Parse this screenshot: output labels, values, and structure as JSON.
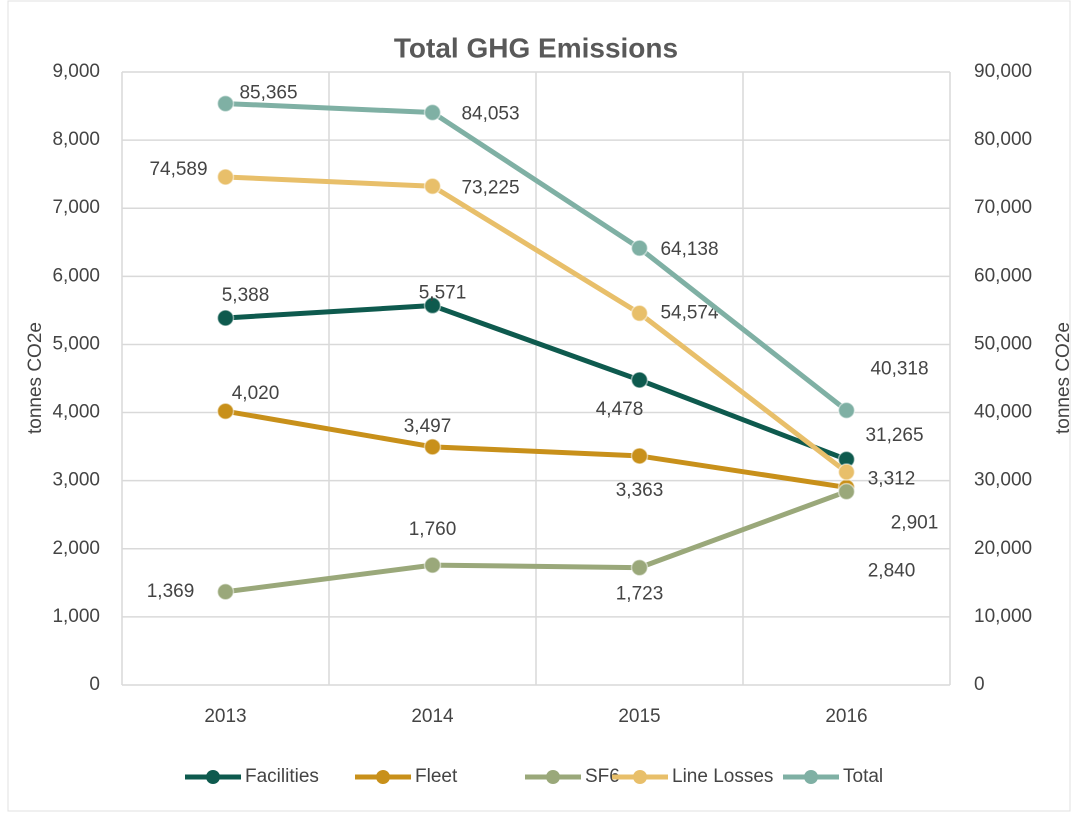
{
  "chart_data": {
    "type": "line",
    "title": "Total GHG Emissions",
    "categories": [
      "2013",
      "2014",
      "2015",
      "2016"
    ],
    "series": [
      {
        "name": "Facilities",
        "color": "#0e5a4e",
        "values": [
          5388,
          5571,
          4478,
          3312
        ],
        "value_labels": [
          "5,388",
          "5,571",
          "4,478",
          "3,312"
        ]
      },
      {
        "name": "Fleet",
        "color": "#c8901a",
        "values": [
          4020,
          3497,
          3363,
          2901
        ],
        "value_labels": [
          "4,020",
          "3,497",
          "3,363",
          "2,901"
        ]
      },
      {
        "name": "SF6",
        "color": "#9aa87a",
        "values": [
          1369,
          1760,
          1723,
          2840
        ],
        "value_labels": [
          "1,369",
          "1,760",
          "1,723",
          "2,840"
        ]
      },
      {
        "name": "Line Losses",
        "color": "#e8bf6a",
        "axis": "y2",
        "values": [
          74589,
          73225,
          54574,
          31265
        ],
        "value_labels": [
          "74,589",
          "73,225",
          "54,574",
          "31,265"
        ]
      },
      {
        "name": "Total",
        "color": "#7fb0a4",
        "axis": "y2",
        "values": [
          85365,
          84053,
          64138,
          40318
        ],
        "value_labels": [
          "85,365",
          "84,053",
          "64,138",
          "40,318"
        ]
      }
    ],
    "ylabel": "tonnes CO2e",
    "y2label": "tonnes CO2e",
    "ylim": [
      0,
      9000
    ],
    "yticks": [
      0,
      {
        "value": 1000,
        "label": "1,000"
      },
      {
        "value": 2000,
        "label": "2,000"
      },
      {
        "value": 3000,
        "label": "3,000"
      },
      {
        "value": 4000,
        "label": "4,000"
      },
      {
        "value": 5000,
        "label": "5,000"
      },
      {
        "value": 6000,
        "label": "6,000"
      },
      {
        "value": 7000,
        "label": "7,000"
      },
      {
        "value": 8000,
        "label": "8,000"
      },
      {
        "value": 9000,
        "label": "9,000"
      }
    ],
    "y2lim": [
      0,
      90000
    ],
    "y2ticks": [
      0,
      {
        "value": 10000,
        "label": "10,000"
      },
      {
        "value": 20000,
        "label": "20,000"
      },
      {
        "value": 30000,
        "label": "30,000"
      },
      {
        "value": 40000,
        "label": "40,000"
      },
      {
        "value": 50000,
        "label": "50,000"
      },
      {
        "value": 60000,
        "label": "60,000"
      },
      {
        "value": 70000,
        "label": "70,000"
      },
      {
        "value": 80000,
        "label": "80,000"
      },
      {
        "value": 90000,
        "label": "90,000"
      }
    ],
    "grid": true,
    "legend": "bottom"
  }
}
